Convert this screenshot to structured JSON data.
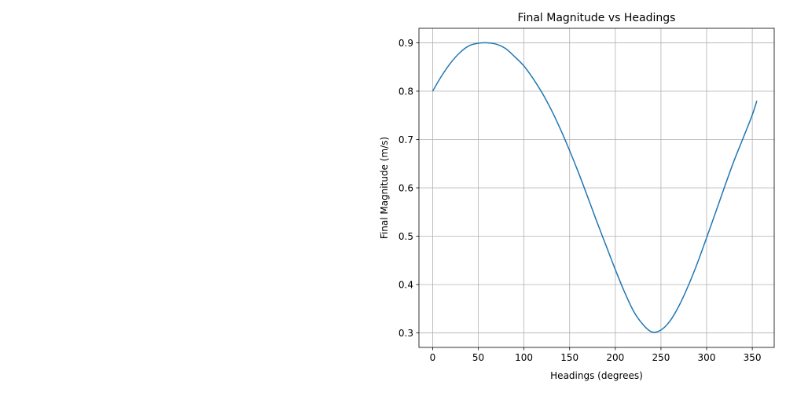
{
  "chart_data": {
    "type": "line",
    "title": "Final Magnitude vs Headings",
    "xlabel": "Headings (degrees)",
    "ylabel": "Final Magnitude (m/s)",
    "xlim": [
      -15,
      374
    ],
    "ylim": [
      0.27,
      0.93
    ],
    "xticks": [
      0,
      50,
      100,
      150,
      200,
      250,
      300,
      350
    ],
    "yticks": [
      0.3,
      0.4,
      0.5,
      0.6,
      0.7,
      0.8,
      0.9
    ],
    "xtick_labels": [
      "0",
      "50",
      "100",
      "150",
      "200",
      "250",
      "300",
      "350"
    ],
    "ytick_labels": [
      "0.3",
      "0.4",
      "0.5",
      "0.6",
      "0.7",
      "0.8",
      "0.9"
    ],
    "grid": true,
    "series": [
      {
        "color": "#1f77b4",
        "x": [
          0,
          10,
          20,
          30,
          40,
          50,
          60,
          70,
          80,
          90,
          100,
          110,
          120,
          130,
          140,
          150,
          160,
          170,
          180,
          190,
          200,
          210,
          220,
          230,
          240,
          250,
          260,
          270,
          280,
          290,
          300,
          310,
          320,
          330,
          340,
          350,
          355
        ],
        "y": [
          0.8,
          0.832,
          0.859,
          0.88,
          0.894,
          0.899,
          0.9,
          0.897,
          0.888,
          0.871,
          0.852,
          0.826,
          0.796,
          0.761,
          0.721,
          0.677,
          0.63,
          0.58,
          0.529,
          0.48,
          0.431,
          0.385,
          0.345,
          0.318,
          0.302,
          0.306,
          0.325,
          0.357,
          0.398,
          0.445,
          0.497,
          0.55,
          0.604,
          0.656,
          0.703,
          0.751,
          0.78
        ]
      }
    ]
  }
}
